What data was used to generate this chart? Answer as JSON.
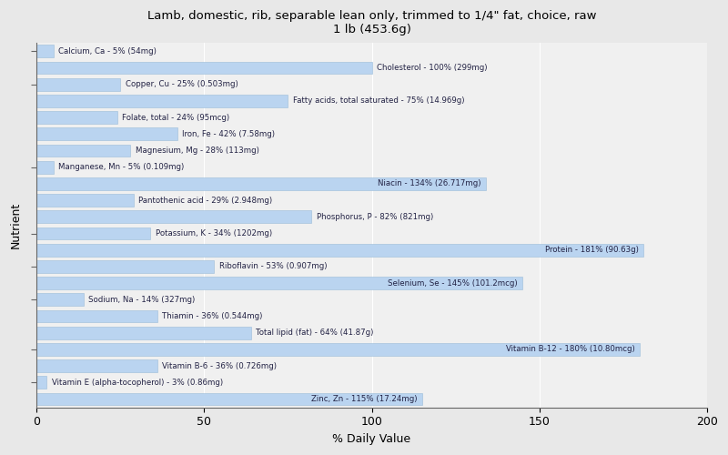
{
  "title": "Lamb, domestic, rib, separable lean only, trimmed to 1/4\" fat, choice, raw\n1 lb (453.6g)",
  "xlabel": "% Daily Value",
  "ylabel": "Nutrient",
  "xlim": [
    0,
    200
  ],
  "xticks": [
    0,
    50,
    100,
    150,
    200
  ],
  "background_color": "#e8e8e8",
  "plot_bg_color": "#f0f0f0",
  "bar_color": "#bad4f0",
  "bar_edge_color": "#9bbcd8",
  "text_color": "#222244",
  "nutrients": [
    {
      "label": "Calcium, Ca - 5% (54mg)",
      "value": 5
    },
    {
      "label": "Cholesterol - 100% (299mg)",
      "value": 100
    },
    {
      "label": "Copper, Cu - 25% (0.503mg)",
      "value": 25
    },
    {
      "label": "Fatty acids, total saturated - 75% (14.969g)",
      "value": 75
    },
    {
      "label": "Folate, total - 24% (95mcg)",
      "value": 24
    },
    {
      "label": "Iron, Fe - 42% (7.58mg)",
      "value": 42
    },
    {
      "label": "Magnesium, Mg - 28% (113mg)",
      "value": 28
    },
    {
      "label": "Manganese, Mn - 5% (0.109mg)",
      "value": 5
    },
    {
      "label": "Niacin - 134% (26.717mg)",
      "value": 134
    },
    {
      "label": "Pantothenic acid - 29% (2.948mg)",
      "value": 29
    },
    {
      "label": "Phosphorus, P - 82% (821mg)",
      "value": 82
    },
    {
      "label": "Potassium, K - 34% (1202mg)",
      "value": 34
    },
    {
      "label": "Protein - 181% (90.63g)",
      "value": 181
    },
    {
      "label": "Riboflavin - 53% (0.907mg)",
      "value": 53
    },
    {
      "label": "Selenium, Se - 145% (101.2mcg)",
      "value": 145
    },
    {
      "label": "Sodium, Na - 14% (327mg)",
      "value": 14
    },
    {
      "label": "Thiamin - 36% (0.544mg)",
      "value": 36
    },
    {
      "label": "Total lipid (fat) - 64% (41.87g)",
      "value": 64
    },
    {
      "label": "Vitamin B-12 - 180% (10.80mcg)",
      "value": 180
    },
    {
      "label": "Vitamin B-6 - 36% (0.726mg)",
      "value": 36
    },
    {
      "label": "Vitamin E (alpha-tocopherol) - 3% (0.86mg)",
      "value": 3
    },
    {
      "label": "Zinc, Zn - 115% (17.24mg)",
      "value": 115
    }
  ],
  "ytick_positions_orig": [
    0,
    2,
    7,
    11,
    13,
    15,
    18,
    20
  ]
}
